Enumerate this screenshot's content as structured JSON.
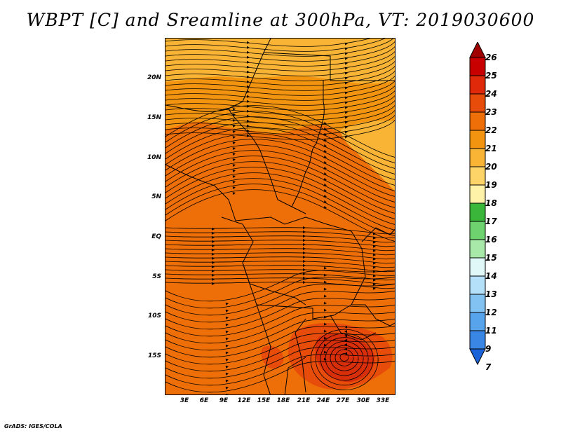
{
  "title": "WBPT [C] and Sreamline at 300hPa, VT: 2019030600",
  "credit": "GrADS: IGES/COLA",
  "lat_ticks": [
    "20N",
    "15N",
    "10N",
    "5N",
    "EQ",
    "5S",
    "10S",
    "15S"
  ],
  "lon_ticks": [
    "3E",
    "6E",
    "9E",
    "12E",
    "15E",
    "18E",
    "21E",
    "24E",
    "27E",
    "30E",
    "33E"
  ],
  "colorbar": {
    "labels": [
      "26",
      "25",
      "24",
      "23",
      "22",
      "21",
      "20",
      "19",
      "18",
      "17",
      "16",
      "15",
      "14",
      "13",
      "12",
      "11",
      "9",
      "7"
    ],
    "colors": [
      "#a00000",
      "#c80000",
      "#e0280a",
      "#e84c0a",
      "#ee6e08",
      "#f29410",
      "#f9b436",
      "#fcd468",
      "#fdf2a8",
      "#3ab63a",
      "#6ed36e",
      "#a8e8a8",
      "#e0f8f8",
      "#b4e0fa",
      "#82c2f2",
      "#58a4ec",
      "#3a86e4",
      "#1a62d8"
    ]
  },
  "map": {
    "fill_colors": {
      "band_21": "#f29410",
      "band_22": "#ee6e08",
      "band_20": "#f9b436",
      "band_23": "#e84c0a",
      "band_24": "#d82e0a"
    },
    "streamline_color": "#000000",
    "border_color": "#000000"
  }
}
